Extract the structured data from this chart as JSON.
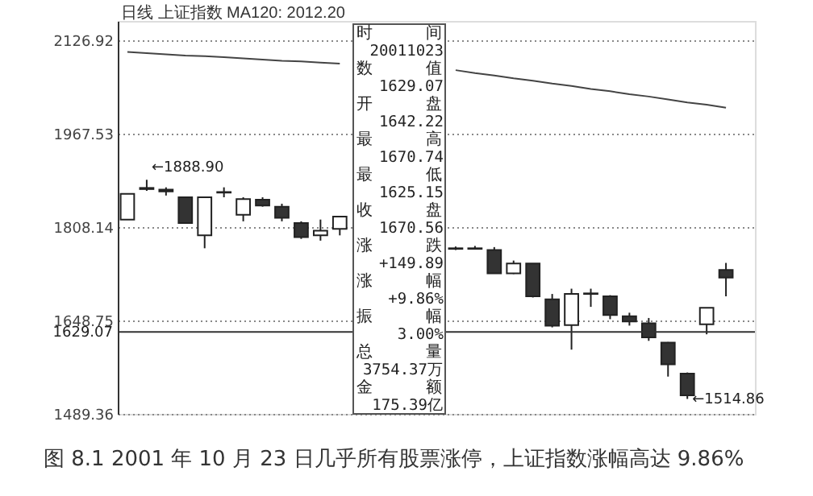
{
  "chart_data": {
    "type": "candlestick",
    "title": "日线  上证指数 MA120: 2012.20",
    "categories": [
      null,
      null,
      null,
      null,
      null,
      null,
      null,
      null,
      null,
      null,
      null,
      null,
      null,
      null,
      null,
      null,
      null,
      null,
      null,
      null,
      null,
      null,
      null,
      null,
      null,
      null,
      null,
      null,
      null,
      null,
      null,
      null,
      null
    ],
    "ohlc": [
      [
        1821,
        1865,
        1821,
        1865
      ],
      [
        1873,
        1888.9,
        1870,
        1875
      ],
      [
        1872,
        1876,
        1862,
        1869
      ],
      [
        1859,
        1860,
        1815,
        1815
      ],
      [
        1794,
        1859,
        1772,
        1859
      ],
      [
        1867,
        1876,
        1859,
        1868
      ],
      [
        1829,
        1859,
        1818,
        1856
      ],
      [
        1855,
        1859,
        1843,
        1845
      ],
      [
        1843,
        1848,
        1818,
        1824
      ],
      [
        1815,
        1818,
        1788,
        1791
      ],
      [
        1794,
        1821,
        1785,
        1802
      ],
      [
        1805,
        1826,
        1794,
        1826
      ],
      null,
      null,
      null,
      null,
      null,
      [
        1771,
        1775,
        1769,
        1772
      ],
      [
        1772,
        1776,
        1770,
        1771
      ],
      [
        1769,
        1774,
        1729,
        1729
      ],
      [
        1729,
        1751,
        1728,
        1746
      ],
      [
        1746,
        1746,
        1688,
        1690
      ],
      [
        1685,
        1694,
        1637,
        1640
      ],
      [
        1641,
        1703,
        1599,
        1694
      ],
      [
        1694,
        1703,
        1672,
        1695
      ],
      [
        1690,
        1692,
        1651,
        1658
      ],
      [
        1656,
        1662,
        1640,
        1647
      ],
      [
        1644,
        1653,
        1614,
        1620
      ],
      [
        1611,
        1612,
        1553,
        1574
      ],
      [
        1558,
        1560,
        1514.86,
        1521
      ],
      [
        1642.22,
        1670.74,
        1625.15,
        1670.56
      ],
      [
        1735,
        1747,
        1690,
        1722
      ],
      null
    ],
    "series": [
      {
        "type": "line",
        "color": "#444444",
        "values": [
          2107,
          2105,
          2103,
          2101,
          2100,
          2098,
          2096,
          2094,
          2092,
          2091,
          2089,
          2087,
          null,
          null,
          null,
          null,
          null,
          2076,
          2071,
          2067,
          2062,
          2058,
          2053,
          2049,
          2044,
          2040,
          2035,
          2031,
          2026,
          2021,
          2017,
          2012,
          null
        ]
      }
    ],
    "ylim": [
      1489.36,
      2160
    ],
    "yticks": [
      2126.92,
      1967.53,
      1808.14,
      1648.75,
      1489.36
    ],
    "grid": "y",
    "tick_labels": "y",
    "ref_lines": [
      {
        "axis": "y",
        "value": 1629.07,
        "label": "1629.07",
        "color": "#333333"
      }
    ],
    "annotations": [
      "图 8.1   2001 年 10 月 23 日几乎所有股票涨停，上证指数涨幅高达 9.86%",
      "←1888.90",
      "←1514.86",
      "时间",
      "20011023",
      "数值",
      "1629.07",
      "开盘",
      "1642.22",
      "最高",
      "1670.74",
      "最低",
      "1625.15",
      "收盘",
      "1670.56",
      "涨跌",
      "+149.89",
      "涨幅",
      "+9.86%",
      "振幅",
      "3.00%",
      "总量",
      "3754.37万",
      "金额",
      "175.39亿"
    ]
  }
}
